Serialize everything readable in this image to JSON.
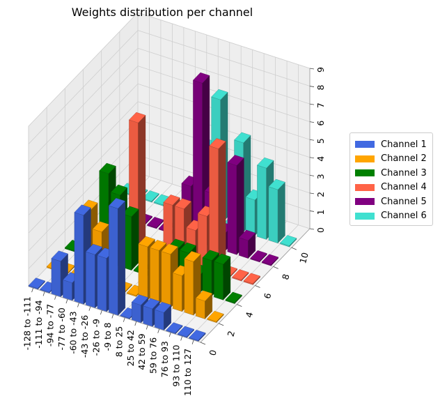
{
  "chart_data": {
    "type": "bar3d",
    "title": "Weights distribution per channel",
    "x_categories": [
      "-128 to -111",
      "-111 to -94",
      "-94 to -77",
      "-77 to -60",
      "-60 to -43",
      "-43 to -26",
      "-26 to -9",
      "-9 to 8",
      "8 to 25",
      "25 to 42",
      "42 to 59",
      "59 to 76",
      "76 to 93",
      "93 to 110",
      "110 to 127"
    ],
    "y_ticks": [
      0,
      2,
      4,
      6,
      8,
      10
    ],
    "z_ticks": [
      0,
      1,
      2,
      3,
      4,
      5,
      6,
      7,
      8,
      9
    ],
    "zlim": [
      0,
      9
    ],
    "legend_position": "right",
    "grid": true,
    "series": [
      {
        "name": "Channel 1",
        "color": "#4169e1",
        "y": 0,
        "values": [
          0,
          0,
          2,
          1,
          5,
          3,
          3,
          6,
          0,
          1,
          1,
          1,
          0,
          0,
          0
        ]
      },
      {
        "name": "Channel 2",
        "color": "#ffa500",
        "y": 2,
        "values": [
          0,
          0,
          0,
          4,
          3,
          0,
          0,
          0,
          3,
          3,
          3,
          2,
          3,
          1,
          0
        ]
      },
      {
        "name": "Channel 3",
        "color": "#008000",
        "y": 4,
        "values": [
          0,
          0,
          0,
          5,
          4,
          3,
          0,
          0,
          0,
          2,
          2,
          1,
          2,
          2,
          0
        ]
      },
      {
        "name": "Channel 4",
        "color": "#ff6347",
        "y": 6,
        "values": [
          0,
          0,
          0,
          0,
          7,
          0,
          0,
          3,
          3,
          2,
          3,
          7,
          0,
          0,
          0
        ]
      },
      {
        "name": "Channel 5",
        "color": "#800080",
        "y": 8,
        "values": [
          0,
          0,
          0,
          0,
          0,
          0,
          0,
          3,
          9,
          3,
          1,
          5,
          1,
          0,
          0
        ]
      },
      {
        "name": "Channel 6",
        "color": "#40e0d0",
        "y": 10,
        "values": [
          0,
          0,
          0,
          0,
          0,
          0,
          0,
          4,
          7,
          0,
          5,
          2,
          4,
          3,
          0
        ]
      }
    ]
  }
}
